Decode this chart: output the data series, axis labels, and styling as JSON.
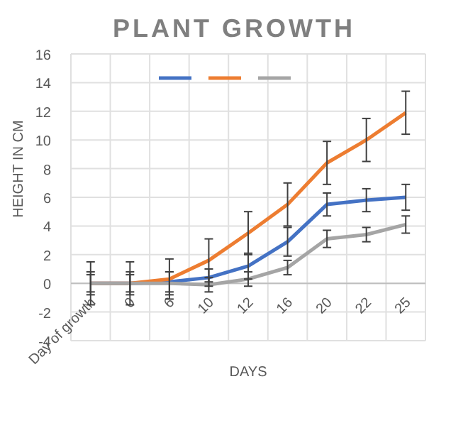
{
  "chart_data": {
    "type": "line",
    "title": "PLANT GROWTH",
    "xlabel": "DAYS",
    "ylabel": "HEIGHT IN CM",
    "categories": [
      "Day of growth",
      "0",
      "6",
      "10",
      "12",
      "16",
      "20",
      "22",
      "25"
    ],
    "series": [
      {
        "color": "#4472c4",
        "values": [
          0,
          0,
          0.1,
          0.4,
          1.2,
          2.9,
          5.5,
          5.8,
          6.0
        ],
        "errors": [
          0.8,
          0.8,
          0.7,
          0.6,
          0.9,
          1.0,
          0.8,
          0.8,
          0.9
        ]
      },
      {
        "color": "#ed7d31",
        "values": [
          0,
          0,
          0.3,
          1.6,
          3.5,
          5.5,
          8.4,
          10,
          11.9
        ],
        "errors": [
          0.6,
          0.6,
          1.4,
          1.5,
          1.5,
          1.5,
          1.5,
          1.5,
          1.5
        ]
      },
      {
        "color": "#a5a5a5",
        "values": [
          0,
          0,
          0,
          -0.1,
          0.3,
          1.1,
          3.1,
          3.4,
          4.1
        ],
        "errors": [
          1.5,
          1.5,
          0.8,
          0.5,
          0.5,
          0.5,
          0.6,
          0.5,
          0.6
        ]
      }
    ],
    "ylim": [
      -4,
      16
    ],
    "yticks": [
      -4,
      -2,
      0,
      2,
      4,
      6,
      8,
      10,
      12,
      14,
      16
    ],
    "grid": true,
    "marker": "none",
    "line_style": "solid"
  }
}
